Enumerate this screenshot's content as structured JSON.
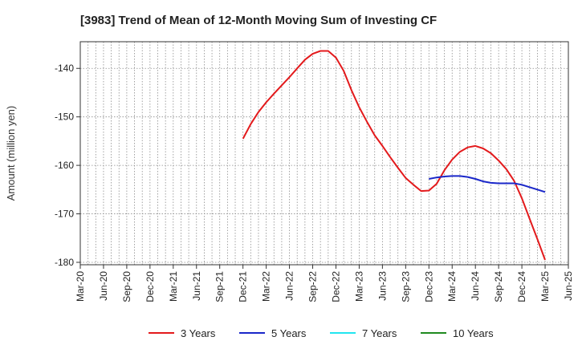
{
  "chart_data": {
    "type": "line",
    "title": "[3983]  Trend of Mean of 12-Month Moving Sum of Investing CF",
    "ylabel": "Amount (million yen)",
    "xlabel": "",
    "ylim": [
      -180.5,
      -134.5
    ],
    "yticks": [
      -140,
      -150,
      -160,
      -170,
      -180
    ],
    "ytick_labels": [
      "-140",
      "-150",
      "-160",
      "-170",
      "-180"
    ],
    "x_tick_labels": [
      "Mar-20",
      "Jun-20",
      "Sep-20",
      "Dec-20",
      "Mar-21",
      "Jun-21",
      "Sep-21",
      "Dec-21",
      "Mar-22",
      "Jun-22",
      "Sep-22",
      "Dec-22",
      "Mar-23",
      "Jun-23",
      "Sep-23",
      "Dec-23",
      "Mar-24",
      "Jun-24",
      "Sep-24",
      "Dec-24",
      "Mar-25",
      "Jun-25"
    ],
    "x_range_months": [
      0,
      63
    ],
    "grid": true,
    "legend_position": "bottom",
    "series": [
      {
        "name": "3 Years",
        "color": "#e31a1c",
        "x": [
          21,
          22,
          23,
          24,
          25,
          26,
          27,
          28,
          29,
          30,
          31,
          32,
          33,
          34,
          35,
          36,
          37,
          38,
          39,
          40,
          41,
          42,
          43,
          44,
          45,
          46,
          47,
          48,
          49,
          50,
          51,
          52,
          53,
          54,
          55,
          56,
          57,
          58,
          59,
          60
        ],
        "values": [
          -154.5,
          -151.5,
          -149.0,
          -147.0,
          -145.2,
          -143.5,
          -141.8,
          -140.0,
          -138.2,
          -137.0,
          -136.4,
          -136.4,
          -137.8,
          -140.5,
          -144.5,
          -148.0,
          -151.0,
          -153.8,
          -156.0,
          -158.3,
          -160.5,
          -162.6,
          -164.0,
          -165.3,
          -165.2,
          -163.8,
          -161.0,
          -158.8,
          -157.2,
          -156.3,
          -156.0,
          -156.5,
          -157.5,
          -159.0,
          -160.8,
          -163.2,
          -166.8,
          -171.0,
          -175.2,
          -179.5
        ]
      },
      {
        "name": "5 Years",
        "color": "#1a27c9",
        "x": [
          45,
          46,
          47,
          48,
          49,
          50,
          51,
          52,
          53,
          54,
          55,
          56,
          57,
          58,
          59,
          60
        ],
        "values": [
          -162.8,
          -162.5,
          -162.3,
          -162.2,
          -162.2,
          -162.4,
          -162.8,
          -163.3,
          -163.6,
          -163.7,
          -163.7,
          -163.7,
          -164.0,
          -164.5,
          -165.0,
          -165.5
        ]
      },
      {
        "name": "7 Years",
        "color": "#22e6f0",
        "x": [],
        "values": []
      },
      {
        "name": "10 Years",
        "color": "#1f8a1f",
        "x": [],
        "values": []
      }
    ]
  }
}
